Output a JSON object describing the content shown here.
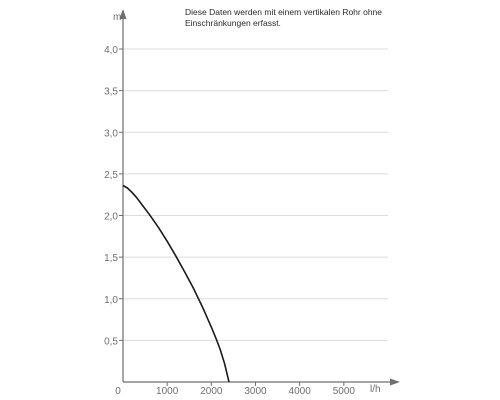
{
  "chart_data": {
    "type": "line",
    "title": "",
    "xlabel": "",
    "ylabel": "",
    "x_unit": "l/h",
    "y_unit": "m",
    "xlim": [
      0,
      6000
    ],
    "ylim": [
      0,
      4.0
    ],
    "x_ticks": [
      0,
      1000,
      2000,
      3000,
      4000,
      5000
    ],
    "x_tick_labels": [
      "0",
      "1000",
      "2000",
      "3000",
      "4000",
      "5000"
    ],
    "y_ticks": [
      0.5,
      1.0,
      1.5,
      2.0,
      2.5,
      3.0,
      3.5,
      4.0
    ],
    "y_tick_labels": [
      "0,5",
      "1,0",
      "1,5",
      "2,0",
      "2,5",
      "3,0",
      "3,5",
      "4,0"
    ],
    "grid": "horizontal",
    "annotation": [
      "Diese Daten werden mit einem vertikalen Rohr ohne",
      "Einschränkungen erfasst."
    ],
    "series": [
      {
        "x": [
          0,
          100,
          200,
          300,
          400,
          600,
          800,
          1000,
          1200,
          1400,
          1600,
          1800,
          2000,
          2100,
          2200,
          2300,
          2400
        ],
        "y": [
          2.36,
          2.33,
          2.28,
          2.22,
          2.15,
          2.01,
          1.86,
          1.69,
          1.51,
          1.32,
          1.12,
          0.9,
          0.66,
          0.53,
          0.39,
          0.22,
          0.0
        ]
      }
    ],
    "colors": {
      "line": "#1a1a1a",
      "axis": "#6f6f6f",
      "grid": "#dcdcdc",
      "text": "#6f6f6f"
    }
  }
}
